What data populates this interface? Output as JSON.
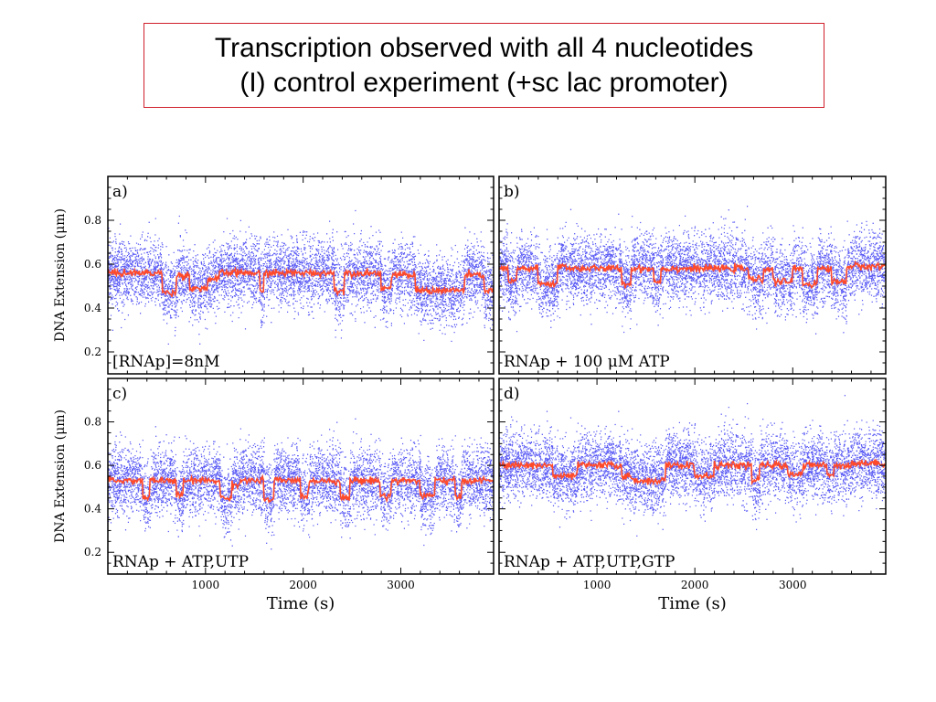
{
  "slide": {
    "title_line1": "Transcription observed with all 4 nucleotides",
    "title_line2": "(I) control experiment (+sc lac promoter)"
  },
  "colors": {
    "raw": "#5a5af5",
    "filtered": "#ff4a2a",
    "frame": "#000000",
    "title_border": "#d0202a"
  },
  "chart_data": [
    {
      "type": "scatter",
      "panel": "a)",
      "annotation": "[RNAp]=8nM",
      "xlabel": "",
      "ylabel": "DNA Extension (μm)",
      "xlim": [
        0,
        3950
      ],
      "ylim": [
        0.1,
        1.0
      ],
      "xticks": [
        1000,
        2000,
        3000
      ],
      "yticks": [
        0.2,
        0.4,
        0.6,
        0.8
      ],
      "x_ticklabels_shown": false,
      "y_ticklabels_shown": true,
      "series": [
        {
          "level_segments": [
            [
              0,
              560,
              0.56
            ],
            [
              560,
              700,
              0.47
            ],
            [
              700,
              840,
              0.55
            ],
            [
              840,
              1020,
              0.49
            ],
            [
              1020,
              1140,
              0.53
            ],
            [
              1140,
              1560,
              0.56
            ],
            [
              1560,
              1600,
              0.47
            ],
            [
              1600,
              2320,
              0.56
            ],
            [
              2320,
              2420,
              0.48
            ],
            [
              2420,
              2800,
              0.56
            ],
            [
              2800,
              2900,
              0.49
            ],
            [
              2900,
              3150,
              0.55
            ],
            [
              3150,
              3650,
              0.48
            ],
            [
              3650,
              3850,
              0.55
            ],
            [
              3850,
              3950,
              0.48
            ]
          ]
        }
      ]
    },
    {
      "type": "scatter",
      "panel": "b)",
      "annotation": "RNAp + 100 μM ATP",
      "xlabel": "",
      "ylabel": "",
      "xlim": [
        0,
        3950
      ],
      "ylim": [
        0.1,
        1.0
      ],
      "xticks": [
        1000,
        2000,
        3000
      ],
      "yticks": [
        0.2,
        0.4,
        0.6,
        0.8
      ],
      "x_ticklabels_shown": false,
      "y_ticklabels_shown": false,
      "series": [
        {
          "level_segments": [
            [
              0,
              90,
              0.58
            ],
            [
              90,
              180,
              0.52
            ],
            [
              180,
              400,
              0.58
            ],
            [
              400,
              600,
              0.51
            ],
            [
              600,
              720,
              0.59
            ],
            [
              720,
              1250,
              0.58
            ],
            [
              1250,
              1350,
              0.51
            ],
            [
              1350,
              1580,
              0.58
            ],
            [
              1580,
              1650,
              0.52
            ],
            [
              1650,
              2550,
              0.58
            ],
            [
              2550,
              2700,
              0.53
            ],
            [
              2700,
              2800,
              0.58
            ],
            [
              2800,
              3000,
              0.52
            ],
            [
              3000,
              3100,
              0.58
            ],
            [
              3100,
              3250,
              0.51
            ],
            [
              3250,
              3400,
              0.58
            ],
            [
              3400,
              3550,
              0.52
            ],
            [
              3550,
              3950,
              0.59
            ]
          ]
        }
      ]
    },
    {
      "type": "scatter",
      "panel": "c)",
      "annotation": "RNAp + ATP,UTP",
      "xlabel": "Time (s)",
      "ylabel": "DNA Extension (μm)",
      "xlim": [
        0,
        3950
      ],
      "ylim": [
        0.1,
        1.0
      ],
      "xticks": [
        1000,
        2000,
        3000
      ],
      "yticks": [
        0.2,
        0.4,
        0.6,
        0.8
      ],
      "x_ticklabels_shown": true,
      "y_ticklabels_shown": true,
      "series": [
        {
          "level_segments": [
            [
              0,
              360,
              0.53
            ],
            [
              360,
              430,
              0.45
            ],
            [
              430,
              700,
              0.53
            ],
            [
              700,
              770,
              0.46
            ],
            [
              770,
              1150,
              0.53
            ],
            [
              1150,
              1270,
              0.45
            ],
            [
              1270,
              1350,
              0.51
            ],
            [
              1350,
              1600,
              0.53
            ],
            [
              1600,
              1700,
              0.44
            ],
            [
              1700,
              1970,
              0.53
            ],
            [
              1970,
              2060,
              0.46
            ],
            [
              2060,
              2380,
              0.53
            ],
            [
              2380,
              2480,
              0.45
            ],
            [
              2480,
              2790,
              0.53
            ],
            [
              2790,
              2900,
              0.46
            ],
            [
              2900,
              3200,
              0.53
            ],
            [
              3200,
              3350,
              0.46
            ],
            [
              3350,
              3560,
              0.53
            ],
            [
              3560,
              3620,
              0.45
            ],
            [
              3620,
              3950,
              0.53
            ]
          ]
        }
      ]
    },
    {
      "type": "scatter",
      "panel": "d)",
      "annotation": "RNAp + ATP,UTP,GTP",
      "xlabel": "Time (s)",
      "ylabel": "",
      "xlim": [
        0,
        3950
      ],
      "ylim": [
        0.1,
        1.0
      ],
      "xticks": [
        1000,
        2000,
        3000
      ],
      "yticks": [
        0.2,
        0.4,
        0.6,
        0.8
      ],
      "x_ticklabels_shown": true,
      "y_ticklabels_shown": false,
      "series": [
        {
          "level_segments": [
            [
              0,
              550,
              0.6
            ],
            [
              550,
              800,
              0.55
            ],
            [
              800,
              1250,
              0.6
            ],
            [
              1250,
              1350,
              0.55
            ],
            [
              1350,
              1700,
              0.53
            ],
            [
              1700,
              1780,
              0.6
            ],
            [
              1780,
              2000,
              0.6
            ],
            [
              2000,
              2200,
              0.55
            ],
            [
              2200,
              2580,
              0.6
            ],
            [
              2580,
              2660,
              0.53
            ],
            [
              2660,
              2950,
              0.6
            ],
            [
              2950,
              3100,
              0.56
            ],
            [
              3100,
              3350,
              0.6
            ],
            [
              3350,
              3420,
              0.56
            ],
            [
              3420,
              3600,
              0.6
            ],
            [
              3600,
              3950,
              0.61
            ]
          ]
        }
      ]
    }
  ]
}
